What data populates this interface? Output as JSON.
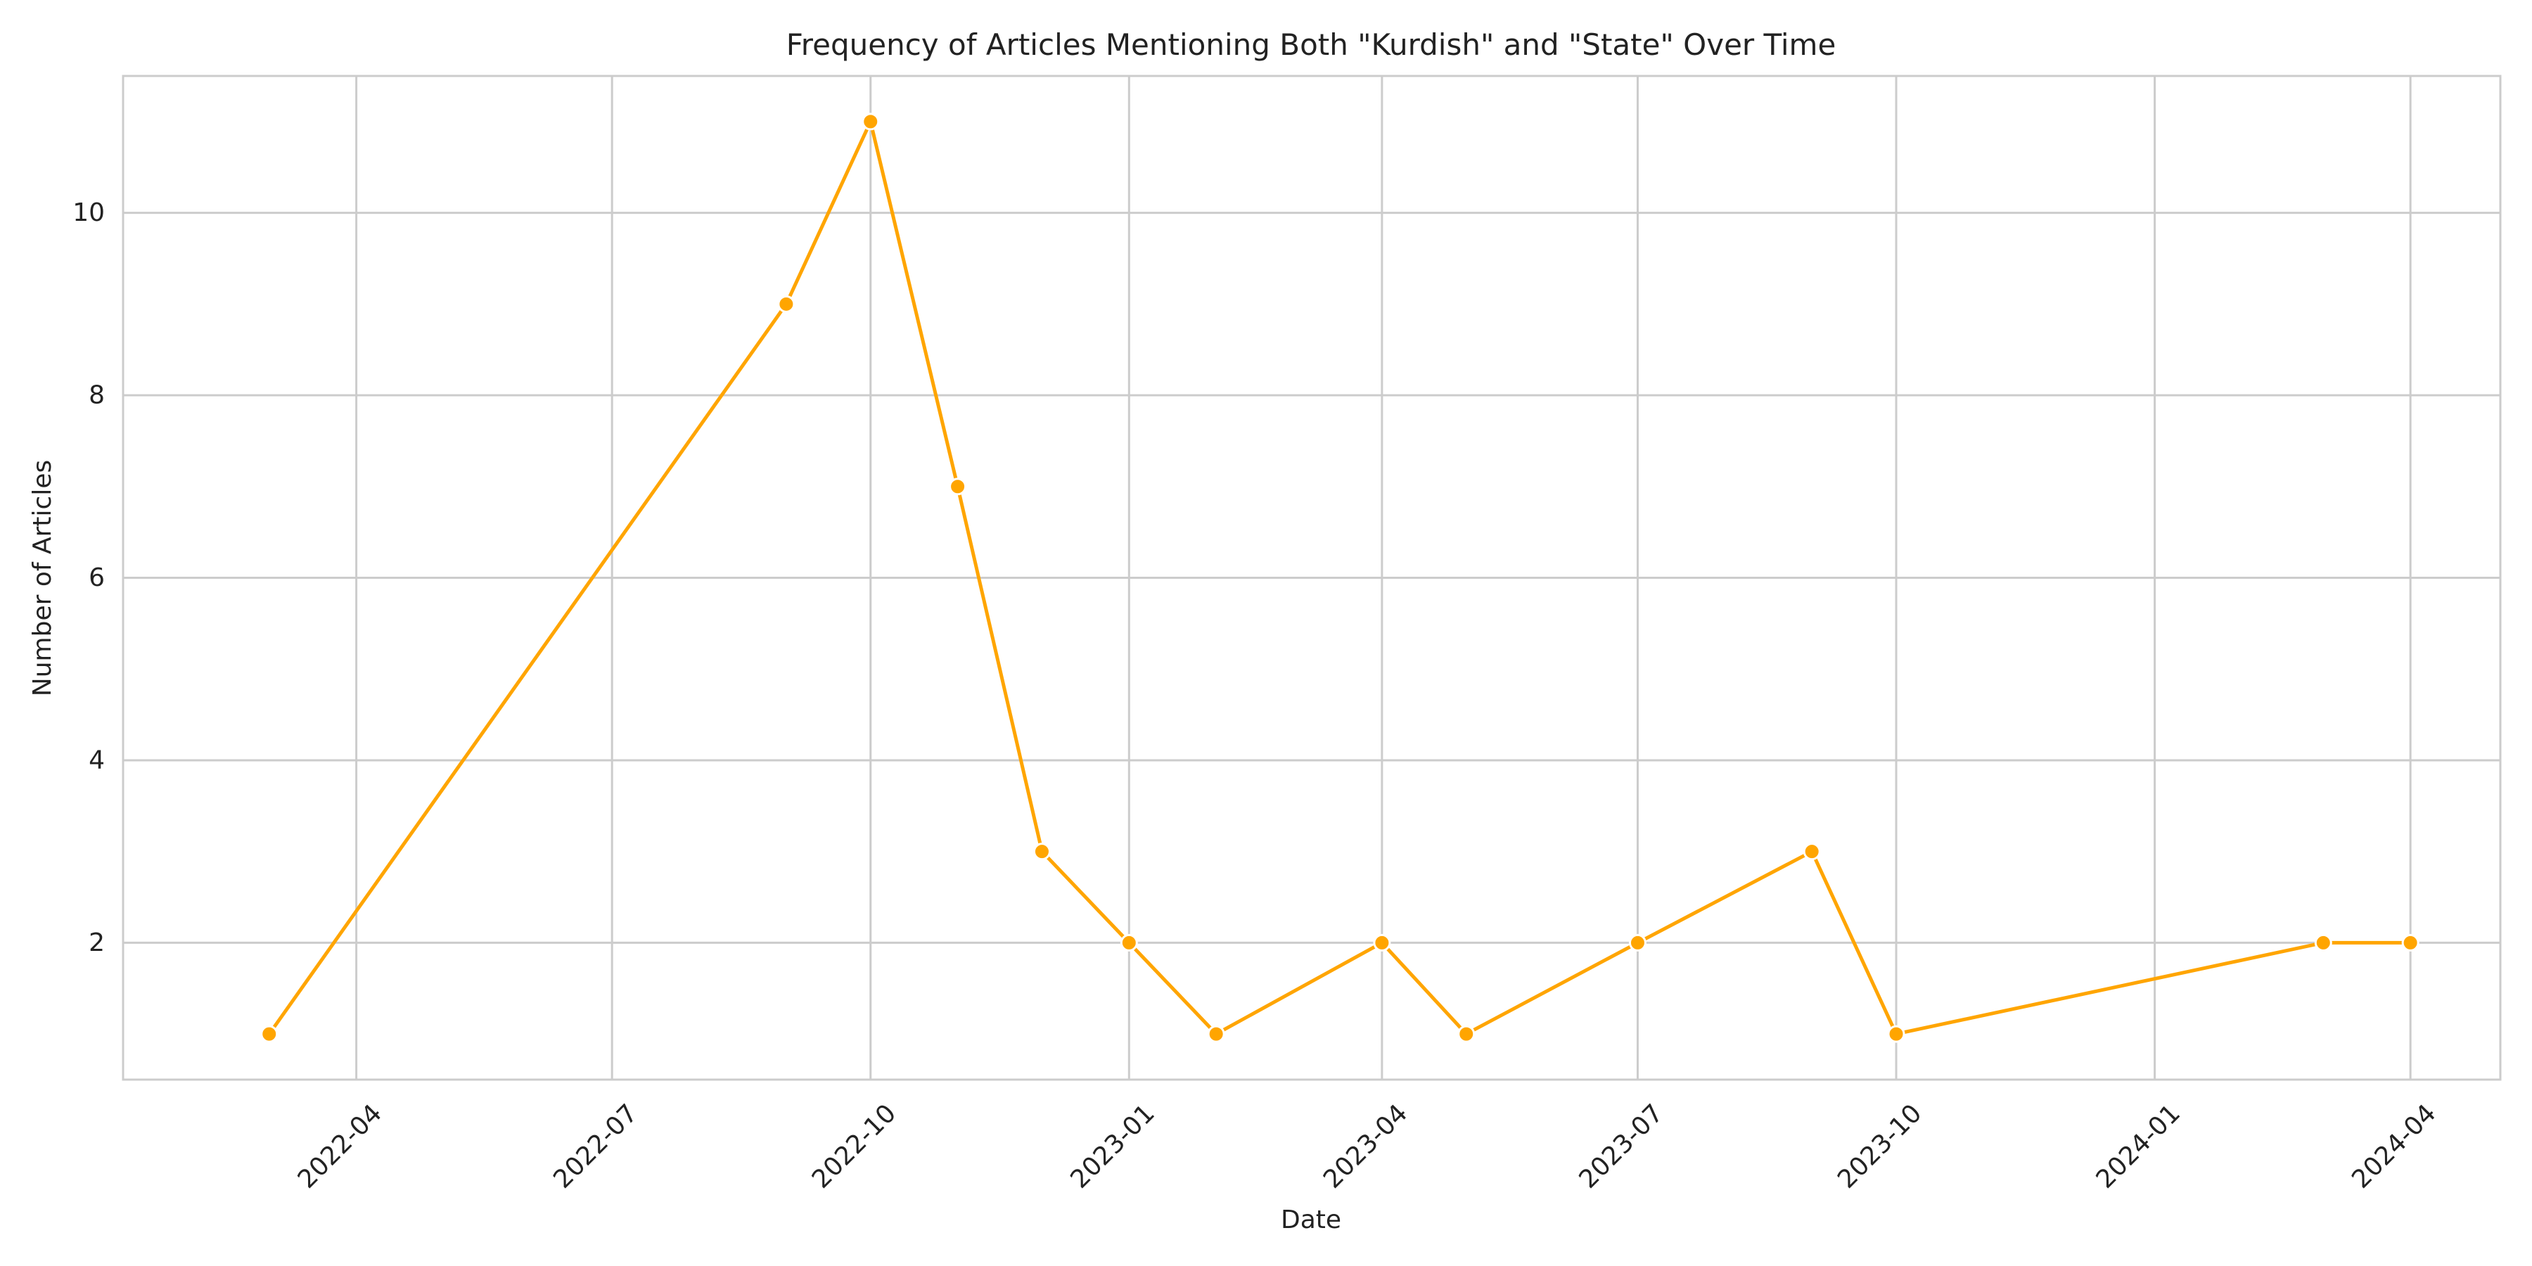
{
  "chart_data": {
    "type": "line",
    "title": "Frequency of Articles Mentioning Both \"Kurdish\" and \"State\" Over Time",
    "xlabel": "Date",
    "ylabel": "Number of Articles",
    "x_type": "date",
    "xlim": [
      "2022-01-08",
      "2024-05-03"
    ],
    "ylim": [
      0.5,
      11.5
    ],
    "x_ticks": [
      {
        "date": "2022-04-01",
        "label": "2022-04"
      },
      {
        "date": "2022-07-01",
        "label": "2022-07"
      },
      {
        "date": "2022-10-01",
        "label": "2022-10"
      },
      {
        "date": "2023-01-01",
        "label": "2023-01"
      },
      {
        "date": "2023-04-01",
        "label": "2023-04"
      },
      {
        "date": "2023-07-01",
        "label": "2023-07"
      },
      {
        "date": "2023-10-01",
        "label": "2023-10"
      },
      {
        "date": "2024-01-01",
        "label": "2024-01"
      },
      {
        "date": "2024-04-01",
        "label": "2024-04"
      }
    ],
    "y_ticks": [
      2,
      4,
      6,
      8,
      10
    ],
    "grid": true,
    "series": [
      {
        "color": "#FFA500",
        "marker": "circle",
        "points": [
          {
            "x": "2022-03-01",
            "y": 1
          },
          {
            "x": "2022-09-01",
            "y": 9
          },
          {
            "x": "2022-10-01",
            "y": 11
          },
          {
            "x": "2022-11-01",
            "y": 7
          },
          {
            "x": "2022-12-01",
            "y": 3
          },
          {
            "x": "2023-01-01",
            "y": 2
          },
          {
            "x": "2023-02-01",
            "y": 1
          },
          {
            "x": "2023-04-01",
            "y": 2
          },
          {
            "x": "2023-05-01",
            "y": 1
          },
          {
            "x": "2023-07-01",
            "y": 2
          },
          {
            "x": "2023-09-01",
            "y": 3
          },
          {
            "x": "2023-10-01",
            "y": 1
          },
          {
            "x": "2024-03-01",
            "y": 2
          },
          {
            "x": "2024-04-01",
            "y": 2
          }
        ]
      }
    ]
  }
}
